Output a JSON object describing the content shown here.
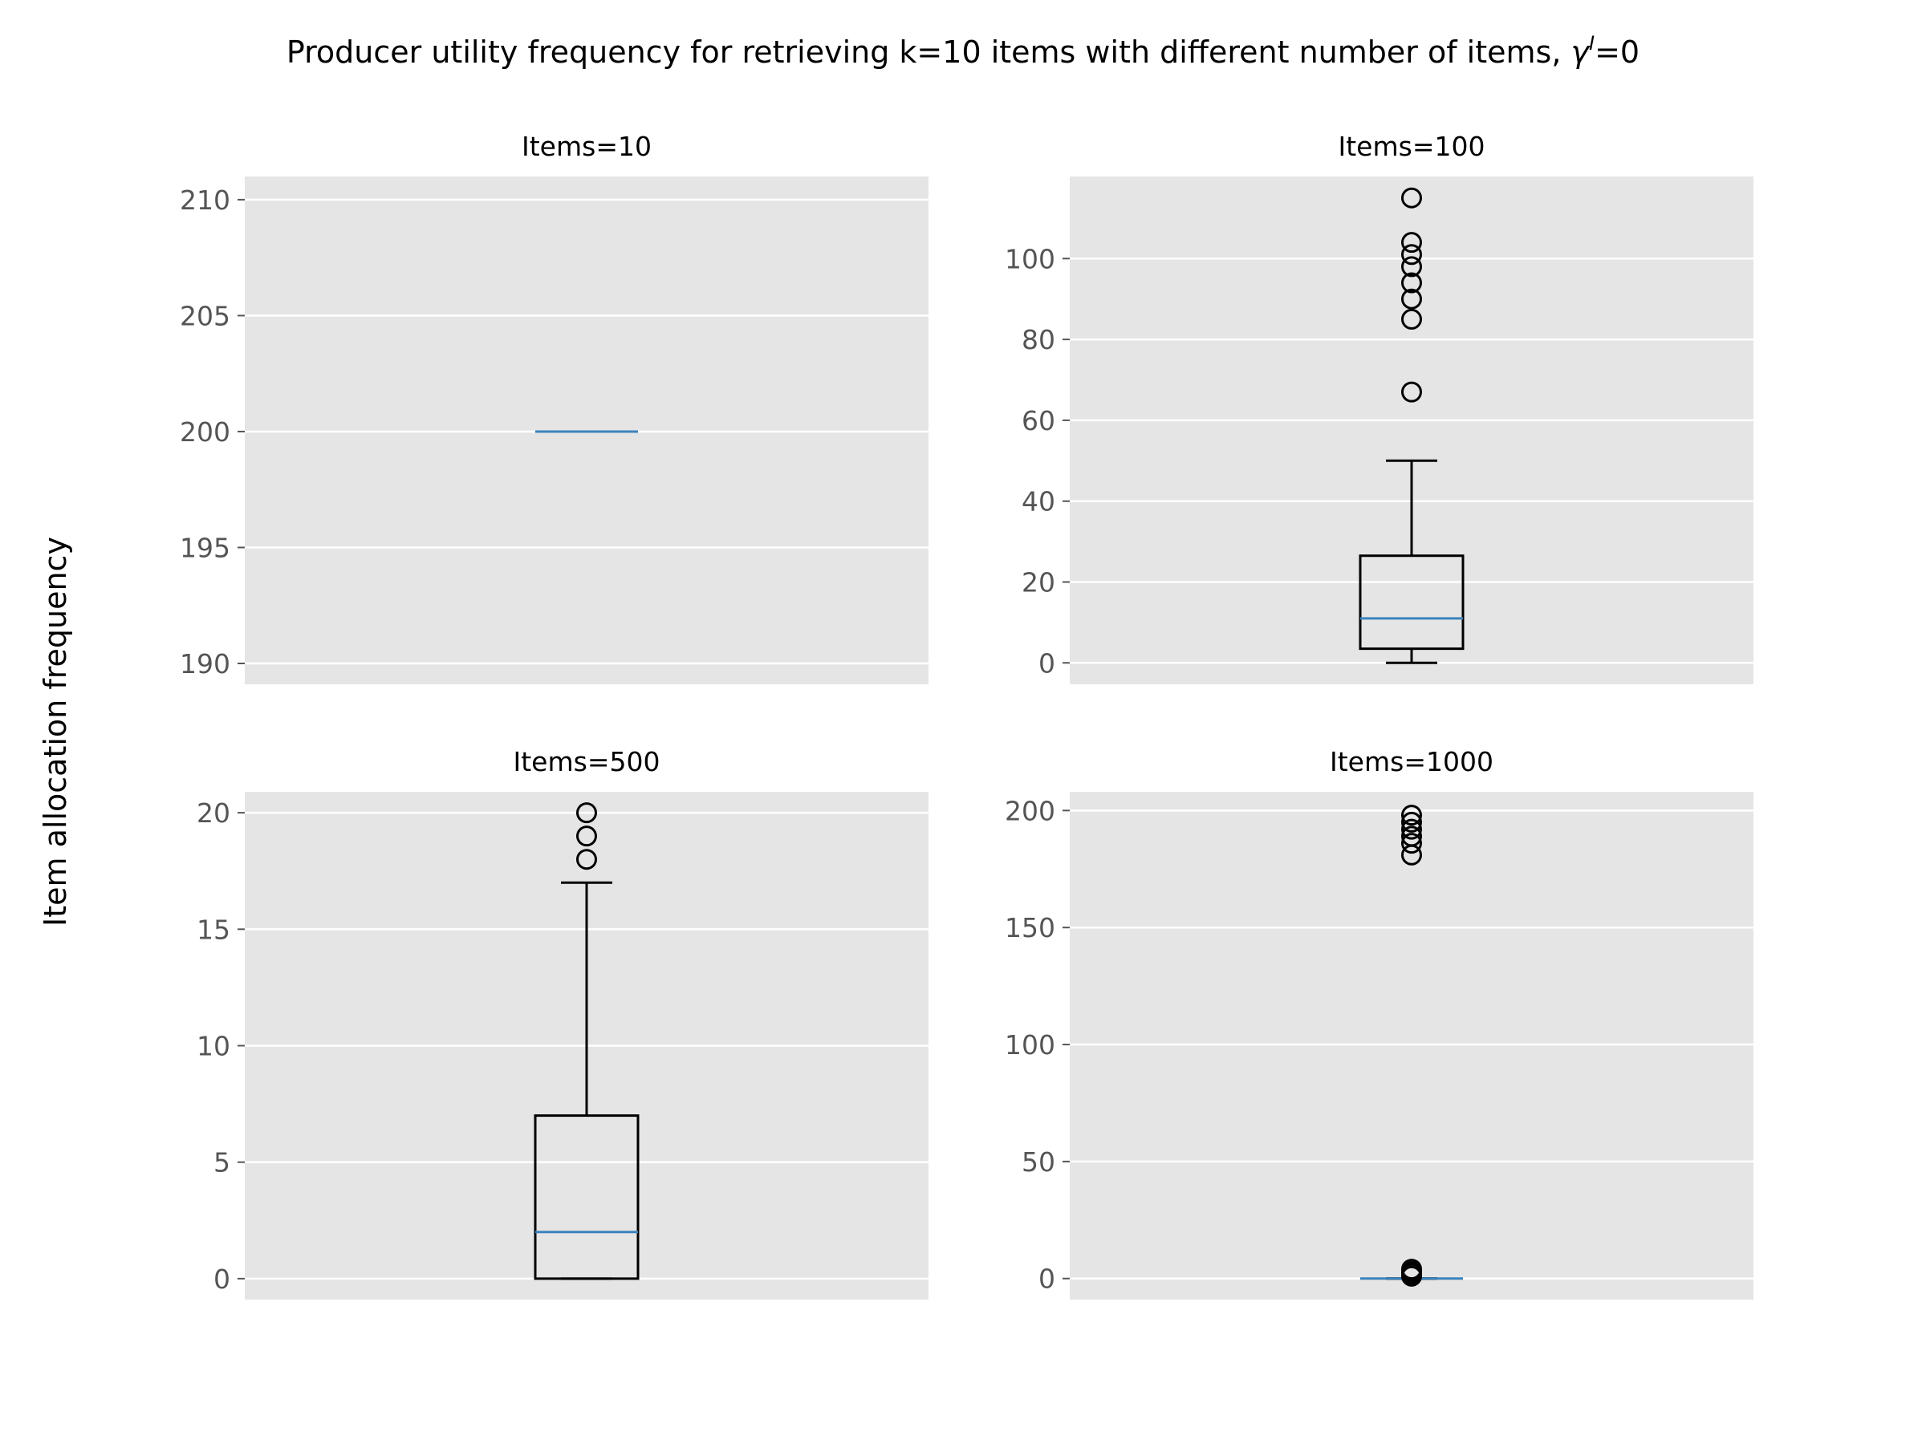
{
  "figure": {
    "title_main": "Producer utility frequency for retrieving k=10 items with different number of items, ",
    "title_gamma": "γ",
    "title_sup": "I",
    "title_tail": "=0",
    "ylabel": "Item allocation frequency"
  },
  "chart_data": [
    {
      "type": "box",
      "title": "Items=10",
      "ylim": [
        189.1,
        211.0
      ],
      "yticks": [
        190,
        195,
        200,
        205,
        210
      ],
      "box": {
        "q1": 200,
        "median": 200,
        "q3": 200,
        "whisker_low": 200,
        "whisker_high": 200
      },
      "fliers": []
    },
    {
      "type": "box",
      "title": "Items=100",
      "ylim": [
        -5.3,
        120.3
      ],
      "yticks": [
        0,
        20,
        40,
        60,
        80,
        100
      ],
      "box": {
        "q1": 3.5,
        "median": 11,
        "q3": 26.5,
        "whisker_low": 0,
        "whisker_high": 50
      },
      "fliers": [
        67,
        85,
        90,
        94,
        98,
        101,
        104,
        115
      ]
    },
    {
      "type": "box",
      "title": "Items=500",
      "ylim": [
        -0.9,
        20.9
      ],
      "yticks": [
        0,
        5,
        10,
        15,
        20
      ],
      "box": {
        "q1": 0,
        "median": 2,
        "q3": 7,
        "whisker_low": 0,
        "whisker_high": 17
      },
      "fliers": [
        18,
        19,
        20
      ]
    },
    {
      "type": "box",
      "title": "Items=1000",
      "ylim": [
        -9.0,
        208.0
      ],
      "yticks": [
        0,
        50,
        100,
        150,
        200
      ],
      "box": {
        "q1": 0,
        "median": 0,
        "q3": 0,
        "whisker_low": 0,
        "whisker_high": 0
      },
      "fliers": [
        1,
        2,
        3,
        4,
        181,
        186,
        189,
        192,
        195,
        198
      ]
    }
  ]
}
